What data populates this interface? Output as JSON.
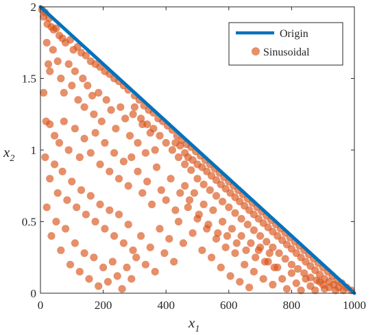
{
  "chart_data": {
    "type": "scatter",
    "xlim": [
      0,
      1000
    ],
    "ylim": [
      0,
      2
    ],
    "xticks": [
      0,
      200,
      400,
      600,
      800,
      1000
    ],
    "yticks": [
      0,
      0.5,
      1,
      1.5,
      2
    ],
    "xtick_labels": [
      "0",
      "200",
      "400",
      "600",
      "800",
      "1000"
    ],
    "ytick_labels": [
      "0",
      "0.5",
      "1",
      "1.5",
      "2"
    ],
    "xlabel": "x",
    "xlabel_sub": "1",
    "ylabel": "x",
    "ylabel_sub": "2",
    "grid": false,
    "legend_position": "top-right",
    "colors": {
      "origin": "#0072BD",
      "sinusoidal": "#D95319"
    },
    "series": [
      {
        "name": "Origin",
        "kind": "line",
        "x": [
          0,
          1000
        ],
        "y": [
          2,
          0
        ]
      },
      {
        "name": "Sinusoidal",
        "kind": "scatter",
        "points": [
          [
            5,
            1.98
          ],
          [
            10,
            1.93
          ],
          [
            15,
            1.96
          ],
          [
            22,
            1.88
          ],
          [
            28,
            1.92
          ],
          [
            35,
            1.86
          ],
          [
            42,
            1.84
          ],
          [
            50,
            1.85
          ],
          [
            60,
            1.8
          ],
          [
            70,
            1.78
          ],
          [
            80,
            1.75
          ],
          [
            95,
            1.77
          ],
          [
            105,
            1.7
          ],
          [
            118,
            1.72
          ],
          [
            130,
            1.68
          ],
          [
            145,
            1.66
          ],
          [
            160,
            1.62
          ],
          [
            175,
            1.6
          ],
          [
            190,
            1.58
          ],
          [
            205,
            1.55
          ],
          [
            220,
            1.53
          ],
          [
            235,
            1.5
          ],
          [
            250,
            1.48
          ],
          [
            265,
            1.45
          ],
          [
            280,
            1.42
          ],
          [
            300,
            1.38
          ],
          [
            315,
            1.35
          ],
          [
            330,
            1.31
          ],
          [
            345,
            1.28
          ],
          [
            360,
            1.26
          ],
          [
            375,
            1.22
          ],
          [
            390,
            1.2
          ],
          [
            405,
            1.17
          ],
          [
            420,
            1.14
          ],
          [
            435,
            1.1
          ],
          [
            450,
            1.07
          ],
          [
            465,
            1.04
          ],
          [
            480,
            1.02
          ],
          [
            495,
            0.99
          ],
          [
            510,
            0.96
          ],
          [
            525,
            0.93
          ],
          [
            540,
            0.9
          ],
          [
            555,
            0.87
          ],
          [
            570,
            0.84
          ],
          [
            585,
            0.81
          ],
          [
            600,
            0.78
          ],
          [
            615,
            0.75
          ],
          [
            630,
            0.72
          ],
          [
            645,
            0.69
          ],
          [
            660,
            0.66
          ],
          [
            675,
            0.63
          ],
          [
            690,
            0.6
          ],
          [
            705,
            0.57
          ],
          [
            720,
            0.54
          ],
          [
            735,
            0.51
          ],
          [
            750,
            0.48
          ],
          [
            765,
            0.45
          ],
          [
            780,
            0.42
          ],
          [
            795,
            0.39
          ],
          [
            810,
            0.36
          ],
          [
            825,
            0.33
          ],
          [
            840,
            0.3
          ],
          [
            855,
            0.27
          ],
          [
            870,
            0.24
          ],
          [
            885,
            0.21
          ],
          [
            900,
            0.18
          ],
          [
            915,
            0.15
          ],
          [
            930,
            0.12
          ],
          [
            945,
            0.09
          ],
          [
            960,
            0.07
          ],
          [
            975,
            0.04
          ],
          [
            990,
            0.02
          ],
          [
            430,
            1.05
          ],
          [
            445,
            1.03
          ],
          [
            460,
            0.98
          ],
          [
            470,
            0.95
          ],
          [
            485,
            0.93
          ],
          [
            500,
            0.9
          ],
          [
            515,
            0.88
          ],
          [
            530,
            0.85
          ],
          [
            545,
            0.82
          ],
          [
            560,
            0.79
          ],
          [
            575,
            0.76
          ],
          [
            590,
            0.73
          ],
          [
            605,
            0.7
          ],
          [
            620,
            0.67
          ],
          [
            635,
            0.64
          ],
          [
            650,
            0.61
          ],
          [
            665,
            0.58
          ],
          [
            680,
            0.55
          ],
          [
            695,
            0.52
          ],
          [
            710,
            0.49
          ],
          [
            725,
            0.46
          ],
          [
            740,
            0.43
          ],
          [
            755,
            0.4
          ],
          [
            770,
            0.37
          ],
          [
            785,
            0.34
          ],
          [
            800,
            0.31
          ],
          [
            815,
            0.28
          ],
          [
            830,
            0.25
          ],
          [
            845,
            0.22
          ],
          [
            860,
            0.19
          ],
          [
            875,
            0.16
          ],
          [
            890,
            0.13
          ],
          [
            905,
            0.1
          ],
          [
            920,
            0.08
          ],
          [
            935,
            0.06
          ],
          [
            950,
            0.04
          ],
          [
            965,
            0.02
          ],
          [
            300,
            1.3
          ],
          [
            320,
            1.22
          ],
          [
            340,
            1.18
          ],
          [
            360,
            1.15
          ],
          [
            380,
            1.1
          ],
          [
            400,
            1.05
          ],
          [
            420,
            1.0
          ],
          [
            440,
            0.95
          ],
          [
            460,
            0.9
          ],
          [
            480,
            0.86
          ],
          [
            500,
            0.8
          ],
          [
            520,
            0.76
          ],
          [
            540,
            0.72
          ],
          [
            560,
            0.68
          ],
          [
            580,
            0.64
          ],
          [
            600,
            0.6
          ],
          [
            620,
            0.56
          ],
          [
            640,
            0.52
          ],
          [
            660,
            0.48
          ],
          [
            680,
            0.44
          ],
          [
            700,
            0.4
          ],
          [
            720,
            0.36
          ],
          [
            740,
            0.32
          ],
          [
            760,
            0.28
          ],
          [
            780,
            0.24
          ],
          [
            800,
            0.2
          ],
          [
            820,
            0.17
          ],
          [
            840,
            0.14
          ],
          [
            860,
            0.11
          ],
          [
            880,
            0.09
          ],
          [
            900,
            0.06
          ],
          [
            920,
            0.04
          ],
          [
            940,
            0.02
          ],
          [
            20,
            1.75
          ],
          [
            25,
            1.6
          ],
          [
            30,
            1.55
          ],
          [
            40,
            1.7
          ],
          [
            55,
            1.62
          ],
          [
            65,
            1.5
          ],
          [
            75,
            1.4
          ],
          [
            90,
            1.6
          ],
          [
            100,
            1.45
          ],
          [
            110,
            1.55
          ],
          [
            120,
            1.35
          ],
          [
            135,
            1.5
          ],
          [
            140,
            1.3
          ],
          [
            150,
            1.45
          ],
          [
            165,
            1.38
          ],
          [
            170,
            1.25
          ],
          [
            185,
            1.4
          ],
          [
            195,
            1.2
          ],
          [
            210,
            1.35
          ],
          [
            225,
            1.28
          ],
          [
            240,
            1.15
          ],
          [
            255,
            1.3
          ],
          [
            270,
            1.22
          ],
          [
            285,
            1.1
          ],
          [
            295,
            1.25
          ],
          [
            310,
            1.05
          ],
          [
            325,
            1.18
          ],
          [
            335,
            0.98
          ],
          [
            350,
            1.12
          ],
          [
            365,
            1.0
          ],
          [
            10,
            1.4
          ],
          [
            18,
            1.2
          ],
          [
            30,
            1.18
          ],
          [
            45,
            1.1
          ],
          [
            60,
            1.05
          ],
          [
            75,
            1.2
          ],
          [
            90,
            1.0
          ],
          [
            110,
            1.15
          ],
          [
            125,
            0.95
          ],
          [
            140,
            1.08
          ],
          [
            160,
            0.98
          ],
          [
            175,
            1.12
          ],
          [
            190,
            0.9
          ],
          [
            205,
            1.05
          ],
          [
            220,
            0.85
          ],
          [
            235,
            0.98
          ],
          [
            250,
            0.8
          ],
          [
            265,
            0.92
          ],
          [
            280,
            0.75
          ],
          [
            290,
            0.95
          ],
          [
            15,
            0.95
          ],
          [
            30,
            0.8
          ],
          [
            45,
            0.9
          ],
          [
            55,
            0.7
          ],
          [
            70,
            0.85
          ],
          [
            85,
            0.65
          ],
          [
            100,
            0.78
          ],
          [
            115,
            0.6
          ],
          [
            130,
            0.72
          ],
          [
            145,
            0.55
          ],
          [
            160,
            0.68
          ],
          [
            175,
            0.5
          ],
          [
            190,
            0.62
          ],
          [
            205,
            0.45
          ],
          [
            220,
            0.58
          ],
          [
            235,
            0.4
          ],
          [
            250,
            0.55
          ],
          [
            265,
            0.35
          ],
          [
            280,
            0.48
          ],
          [
            295,
            0.3
          ],
          [
            310,
            0.85
          ],
          [
            325,
            0.7
          ],
          [
            340,
            0.78
          ],
          [
            355,
            0.62
          ],
          [
            370,
            0.88
          ],
          [
            385,
            0.72
          ],
          [
            400,
            0.65
          ],
          [
            415,
            0.8
          ],
          [
            430,
            0.58
          ],
          [
            445,
            0.7
          ],
          [
            20,
            0.6
          ],
          [
            35,
            0.4
          ],
          [
            50,
            0.5
          ],
          [
            65,
            0.3
          ],
          [
            80,
            0.45
          ],
          [
            95,
            0.2
          ],
          [
            110,
            0.35
          ],
          [
            125,
            0.15
          ],
          [
            140,
            0.28
          ],
          [
            155,
            0.1
          ],
          [
            170,
            0.25
          ],
          [
            185,
            0.05
          ],
          [
            200,
            0.18
          ],
          [
            215,
            0.08
          ],
          [
            230,
            0.22
          ],
          [
            245,
            0.12
          ],
          [
            260,
            0.03
          ],
          [
            275,
            0.18
          ],
          [
            290,
            0.1
          ],
          [
            305,
            0.25
          ],
          [
            320,
            0.4
          ],
          [
            335,
            0.2
          ],
          [
            350,
            0.32
          ],
          [
            365,
            0.15
          ],
          [
            380,
            0.45
          ],
          [
            395,
            0.28
          ],
          [
            410,
            0.38
          ],
          [
            425,
            0.22
          ],
          [
            440,
            0.5
          ],
          [
            455,
            0.35
          ],
          [
            470,
            0.6
          ],
          [
            485,
            0.42
          ],
          [
            500,
            0.52
          ],
          [
            515,
            0.3
          ],
          [
            530,
            0.45
          ],
          [
            545,
            0.25
          ],
          [
            560,
            0.38
          ],
          [
            575,
            0.18
          ],
          [
            590,
            0.32
          ],
          [
            605,
            0.12
          ],
          [
            620,
            0.28
          ],
          [
            635,
            0.08
          ],
          [
            650,
            0.2
          ],
          [
            665,
            0.04
          ],
          [
            680,
            0.15
          ],
          [
            695,
            0.3
          ],
          [
            710,
            0.1
          ],
          [
            725,
            0.22
          ],
          [
            740,
            0.06
          ],
          [
            755,
            0.18
          ],
          [
            770,
            0.1
          ],
          [
            785,
            0.03
          ],
          [
            800,
            0.14
          ],
          [
            815,
            0.07
          ],
          [
            830,
            0.02
          ],
          [
            845,
            0.1
          ],
          [
            860,
            0.05
          ],
          [
            875,
            0.02
          ],
          [
            890,
            0.08
          ],
          [
            905,
            0.03
          ],
          [
            460,
            0.75
          ],
          [
            475,
            0.65
          ],
          [
            490,
            0.7
          ],
          [
            505,
            0.55
          ],
          [
            520,
            0.62
          ],
          [
            535,
            0.48
          ],
          [
            550,
            0.58
          ],
          [
            565,
            0.42
          ],
          [
            580,
            0.5
          ],
          [
            595,
            0.4
          ],
          [
            610,
            0.45
          ],
          [
            625,
            0.35
          ],
          [
            640,
            0.4
          ],
          [
            655,
            0.3
          ],
          [
            670,
            0.35
          ],
          [
            685,
            0.25
          ],
          [
            700,
            0.32
          ],
          [
            715,
            0.22
          ],
          [
            730,
            0.28
          ],
          [
            745,
            0.18
          ]
        ]
      }
    ]
  }
}
